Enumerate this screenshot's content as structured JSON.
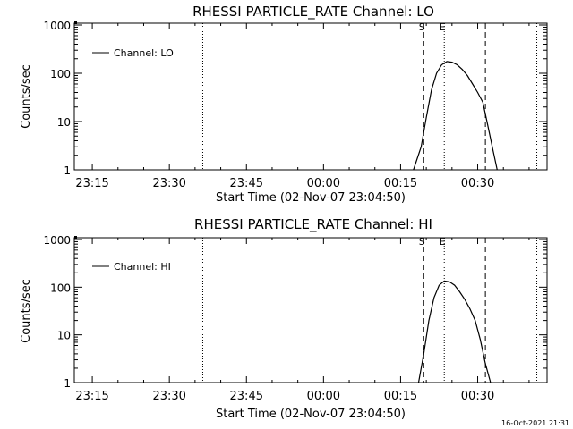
{
  "footer": {
    "timestamp": "16-Oct-2021 21:31"
  },
  "chart_data": [
    {
      "type": "line",
      "title": "RHESSI PARTICLE_RATE Channel: LO",
      "xlabel": "Start Time (02-Nov-07 23:04:50)",
      "ylabel": "Counts/sec",
      "y_scale": "log",
      "ylim": [
        1,
        1000
      ],
      "y_ticks": [
        1,
        10,
        100,
        1000
      ],
      "y_tick_labels": [
        "1",
        "10",
        "100",
        "1000"
      ],
      "x_ticks": [
        "23:15",
        "23:30",
        "23:45",
        "00:00",
        "00:15",
        "00:30"
      ],
      "legend": {
        "label": "Channel: LO",
        "position": "top-left"
      },
      "markers": [
        {
          "label": "S",
          "minute": 19.5,
          "style": "dashed"
        },
        {
          "label": "E",
          "minute": 23.5,
          "style": "dotted"
        },
        {
          "label": "",
          "minute": 31.5,
          "style": "dashed"
        },
        {
          "label": "",
          "minute": -23.5,
          "style": "dotted"
        },
        {
          "label": "",
          "minute": 41.5,
          "style": "dotted"
        }
      ],
      "series": [
        {
          "name": "Channel: LO",
          "x": [
            17.5,
            19,
            20,
            21,
            22,
            23,
            24,
            25,
            26,
            27,
            28,
            29,
            30,
            31,
            32,
            33,
            33.8
          ],
          "y": [
            1,
            3,
            12,
            45,
            100,
            150,
            175,
            170,
            150,
            120,
            90,
            60,
            40,
            25,
            8,
            2.5,
            1
          ]
        }
      ]
    },
    {
      "type": "line",
      "title": "RHESSI PARTICLE_RATE Channel: HI",
      "xlabel": "Start Time (02-Nov-07 23:04:50)",
      "ylabel": "Counts/sec",
      "y_scale": "log",
      "ylim": [
        1,
        1000
      ],
      "y_ticks": [
        1,
        10,
        100,
        1000
      ],
      "y_tick_labels": [
        "1",
        "10",
        "100",
        "1000"
      ],
      "x_ticks": [
        "23:15",
        "23:30",
        "23:45",
        "00:00",
        "00:15",
        "00:30"
      ],
      "legend": {
        "label": "Channel: HI",
        "position": "top-left"
      },
      "markers": [
        {
          "label": "S",
          "minute": 19.5,
          "style": "dashed"
        },
        {
          "label": "E",
          "minute": 23.5,
          "style": "dotted"
        },
        {
          "label": "",
          "minute": 31.5,
          "style": "dashed"
        },
        {
          "label": "",
          "minute": -23.5,
          "style": "dotted"
        },
        {
          "label": "",
          "minute": 41.5,
          "style": "dotted"
        }
      ],
      "series": [
        {
          "name": "Channel: HI",
          "x": [
            18.5,
            19.5,
            20.5,
            21.5,
            22.5,
            23.5,
            24.5,
            25.5,
            26.5,
            27.5,
            28.5,
            29.5,
            30.5,
            31.5,
            32.5
          ],
          "y": [
            1,
            4,
            20,
            60,
            110,
            135,
            130,
            110,
            80,
            55,
            35,
            20,
            8,
            2.5,
            1
          ]
        }
      ]
    }
  ]
}
